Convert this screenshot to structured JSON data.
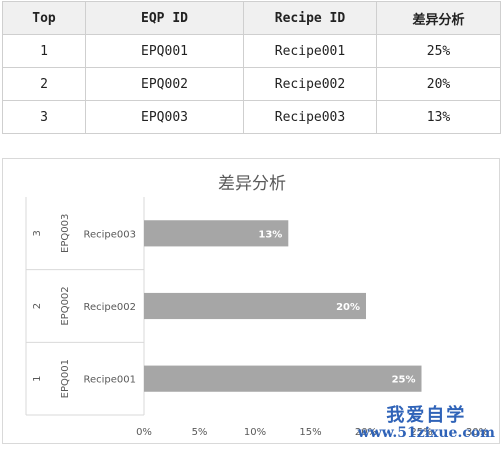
{
  "table": {
    "headers": [
      "Top",
      "EQP ID",
      "Recipe ID",
      "差异分析"
    ],
    "rows": [
      [
        "1",
        "EPQ001",
        "Recipe001",
        "25%"
      ],
      [
        "2",
        "EPQ002",
        "Recipe002",
        "20%"
      ],
      [
        "3",
        "EPQ003",
        "Recipe003",
        "13%"
      ]
    ]
  },
  "chart_data": {
    "type": "bar",
    "orientation": "horizontal",
    "title": "差异分析",
    "categories": [
      {
        "top": "1",
        "eqp": "EPQ001",
        "recipe": "Recipe001"
      },
      {
        "top": "2",
        "eqp": "EPQ002",
        "recipe": "Recipe002"
      },
      {
        "top": "3",
        "eqp": "EPQ003",
        "recipe": "Recipe003"
      }
    ],
    "values": [
      25,
      20,
      13
    ],
    "data_labels": [
      "25%",
      "20%",
      "13%"
    ],
    "xlim": [
      0,
      30
    ],
    "xticks": [
      "0%",
      "5%",
      "10%",
      "15%",
      "20%",
      "25%",
      "30%"
    ],
    "bar_color": "#a6a6a6",
    "grid": false,
    "legend": "none"
  },
  "watermark": {
    "cn": "我爱自学",
    "url": "www.51zixue.com"
  }
}
